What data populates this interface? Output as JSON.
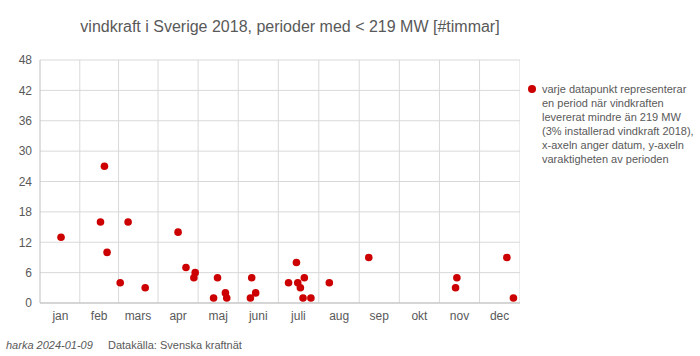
{
  "chart_data": {
    "type": "scatter",
    "title": "vindkraft i Sverige 2018, perioder med < 219 MW  [#timmar]",
    "series": [
      {
        "name": "varje datapunkt representerar en period när vindkraften levererat mindre än 219 MW (3% installerad vindkraft 2018), x-axeln anger datum, y-axeln varaktigheten av perioden",
        "color": "#cc0000",
        "marker": "circle",
        "x": [
          16,
          46,
          49,
          51,
          61,
          67,
          80,
          105,
          111,
          117,
          118,
          132,
          135,
          141,
          142,
          160,
          161,
          164,
          189,
          195,
          196,
          198,
          200,
          201,
          206,
          220,
          250,
          316,
          317,
          355,
          360
        ],
        "values": [
          13,
          16,
          27,
          10,
          4,
          16,
          3,
          14,
          7,
          5,
          6,
          1,
          5,
          2,
          1,
          1,
          5,
          2,
          4,
          8,
          4,
          3,
          1,
          5,
          1,
          4,
          9,
          3,
          5,
          9,
          1
        ]
      }
    ],
    "xlim": [
      0,
      365
    ],
    "xticks": [
      {
        "value": 15.5,
        "label": "jan"
      },
      {
        "value": 45,
        "label": "feb"
      },
      {
        "value": 74.5,
        "label": "mars"
      },
      {
        "value": 105,
        "label": "apr"
      },
      {
        "value": 135.5,
        "label": "maj"
      },
      {
        "value": 166,
        "label": "juni"
      },
      {
        "value": 196.5,
        "label": "juli"
      },
      {
        "value": 227.5,
        "label": "aug"
      },
      {
        "value": 258,
        "label": "sep"
      },
      {
        "value": 288.5,
        "label": "okt"
      },
      {
        "value": 319,
        "label": "nov"
      },
      {
        "value": 349.5,
        "label": "dec"
      }
    ],
    "ylim": [
      0,
      48
    ],
    "yticks": [
      0,
      6,
      12,
      18,
      24,
      30,
      36,
      42,
      48
    ],
    "grid": true,
    "annotations": [
      "harka 2024-01-09",
      "Datakälla: Svenska kraftnät"
    ]
  }
}
